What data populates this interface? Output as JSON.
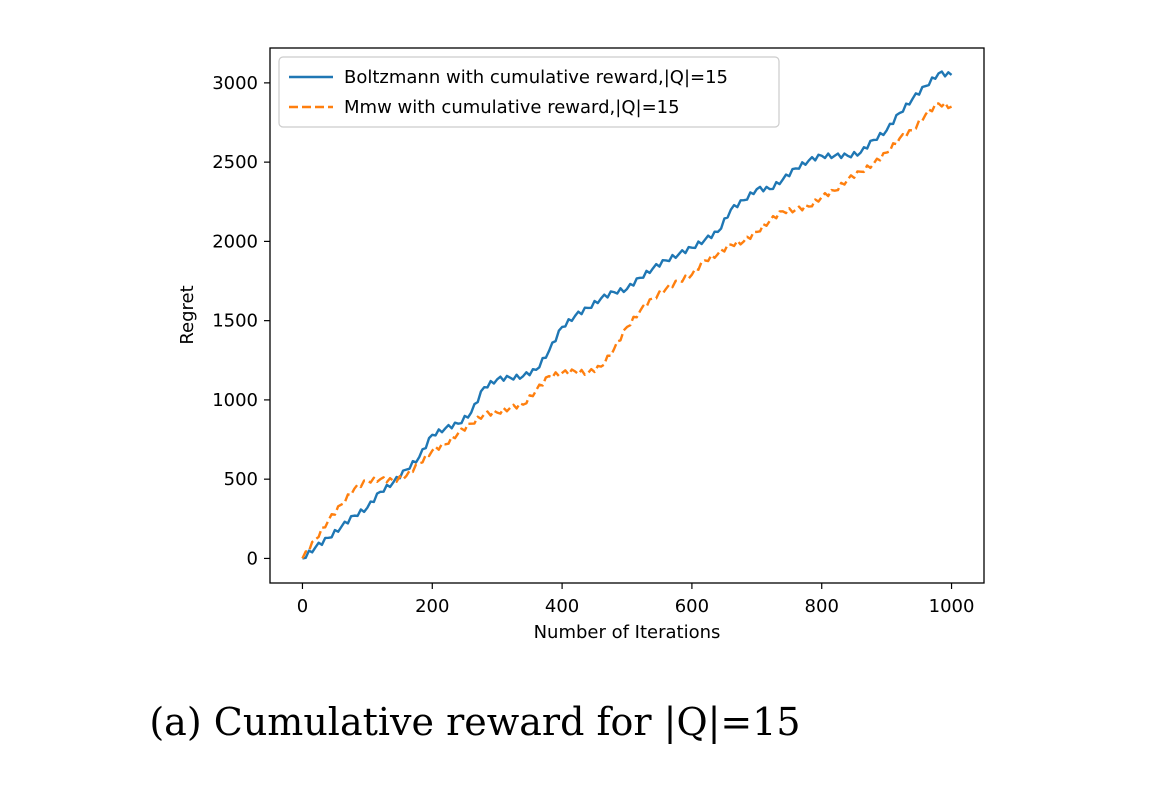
{
  "caption": "(a) Cumulative reward for |Q|=15",
  "colors": {
    "series_0": "#1f77b4",
    "series_1": "#ff7f0e"
  },
  "chart_data": {
    "type": "line",
    "title": "",
    "xlabel": "Number of Iterations",
    "ylabel": "Regret",
    "xlim": [
      -50,
      1050
    ],
    "ylim": [
      -155,
      3220
    ],
    "xticks": [
      0,
      200,
      400,
      600,
      800,
      1000
    ],
    "yticks": [
      0,
      500,
      1000,
      1500,
      2000,
      2500,
      3000
    ],
    "xtick_labels": [
      "0",
      "200",
      "400",
      "600",
      "800",
      "1000"
    ],
    "ytick_labels": [
      "0",
      "500",
      "1000",
      "1500",
      "2000",
      "2500",
      "3000"
    ],
    "legend_position": "top-left",
    "grid": false,
    "series": [
      {
        "name": "Boltzmann with cumulative reward,|Q|=15",
        "style": "solid",
        "x": [
          0,
          20,
          40,
          60,
          80,
          100,
          120,
          140,
          160,
          180,
          200,
          220,
          240,
          260,
          280,
          300,
          320,
          340,
          360,
          380,
          400,
          420,
          440,
          460,
          480,
          500,
          520,
          540,
          560,
          580,
          600,
          620,
          640,
          660,
          680,
          700,
          720,
          740,
          760,
          780,
          800,
          820,
          840,
          860,
          880,
          900,
          920,
          940,
          960,
          980,
          1000
        ],
        "y": [
          0,
          70,
          130,
          200,
          270,
          320,
          420,
          480,
          560,
          640,
          780,
          820,
          850,
          920,
          1080,
          1130,
          1140,
          1150,
          1190,
          1310,
          1460,
          1530,
          1580,
          1640,
          1680,
          1700,
          1770,
          1830,
          1880,
          1920,
          1960,
          2010,
          2060,
          2200,
          2260,
          2330,
          2330,
          2390,
          2460,
          2510,
          2540,
          2540,
          2540,
          2560,
          2640,
          2700,
          2810,
          2900,
          2980,
          3060,
          3050
        ]
      },
      {
        "name": "Mmw with cumulative reward,|Q|=15",
        "style": "dashed",
        "x": [
          0,
          20,
          40,
          60,
          80,
          100,
          120,
          140,
          160,
          180,
          200,
          220,
          240,
          260,
          280,
          300,
          320,
          340,
          360,
          380,
          400,
          420,
          440,
          460,
          480,
          500,
          520,
          540,
          560,
          580,
          600,
          620,
          640,
          660,
          680,
          700,
          720,
          740,
          760,
          780,
          800,
          820,
          840,
          860,
          880,
          900,
          920,
          940,
          960,
          980,
          1000
        ],
        "y": [
          0,
          120,
          240,
          340,
          440,
          490,
          500,
          490,
          520,
          600,
          680,
          720,
          790,
          850,
          910,
          920,
          950,
          970,
          1060,
          1150,
          1170,
          1180,
          1170,
          1210,
          1320,
          1460,
          1560,
          1640,
          1700,
          1750,
          1790,
          1880,
          1920,
          1980,
          2000,
          2060,
          2130,
          2190,
          2200,
          2220,
          2280,
          2320,
          2390,
          2440,
          2490,
          2560,
          2650,
          2700,
          2800,
          2870,
          2850
        ]
      }
    ]
  }
}
